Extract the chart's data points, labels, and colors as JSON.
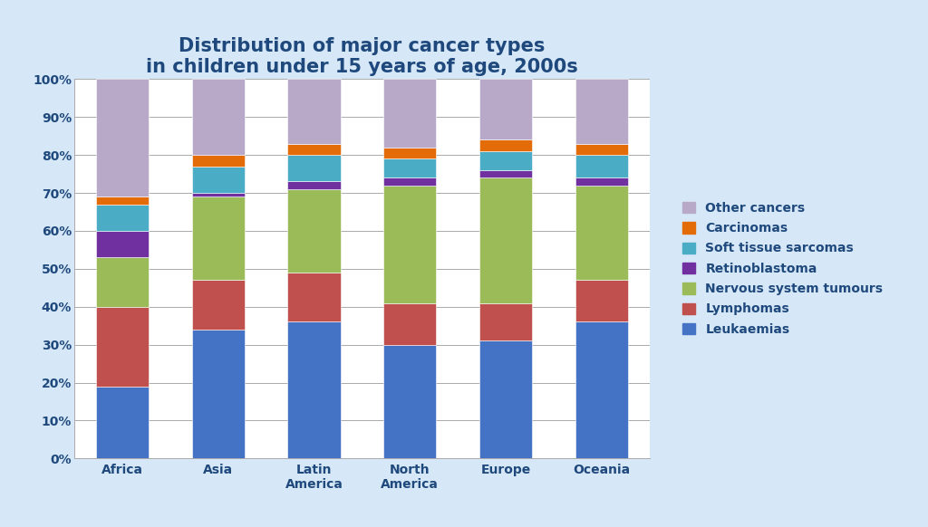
{
  "title": "Distribution of major cancer types\nin children under 15 years of age, 2000s",
  "categories": [
    "Africa",
    "Asia",
    "Latin\nAmerica",
    "North\nAmerica",
    "Europe",
    "Oceania"
  ],
  "series": [
    {
      "label": "Leukaemias",
      "color": "#4472C4",
      "values": [
        19,
        34,
        36,
        30,
        31,
        36
      ]
    },
    {
      "label": "Lymphomas",
      "color": "#C0504D",
      "values": [
        21,
        13,
        13,
        11,
        10,
        11
      ]
    },
    {
      "label": "Nervous system tumours",
      "color": "#9BBB59",
      "values": [
        13,
        22,
        22,
        31,
        33,
        25
      ]
    },
    {
      "label": "Retinoblastoma",
      "color": "#7030A0",
      "values": [
        7,
        1,
        2,
        2,
        2,
        2
      ]
    },
    {
      "label": "Soft tissue sarcomas",
      "color": "#4BACC6",
      "values": [
        7,
        7,
        7,
        5,
        5,
        6
      ]
    },
    {
      "label": "Carcinomas",
      "color": "#E36C09",
      "values": [
        2,
        3,
        3,
        3,
        3,
        3
      ]
    },
    {
      "label": "Other cancers",
      "color": "#B8A9C9",
      "values": [
        31,
        20,
        17,
        18,
        16,
        17
      ]
    }
  ],
  "title_color": "#1F497D",
  "title_fontsize": 15,
  "tick_color": "#1F497D",
  "background_color": "#FFFFFF",
  "outer_bg_color": "#D6E8F7",
  "legend_fontsize": 10,
  "ylim": [
    0,
    100
  ],
  "yticks": [
    0,
    10,
    20,
    30,
    40,
    50,
    60,
    70,
    80,
    90,
    100
  ],
  "ytick_labels": [
    "0%",
    "10%",
    "20%",
    "30%",
    "40%",
    "50%",
    "60%",
    "70%",
    "80%",
    "90%",
    "100%"
  ]
}
